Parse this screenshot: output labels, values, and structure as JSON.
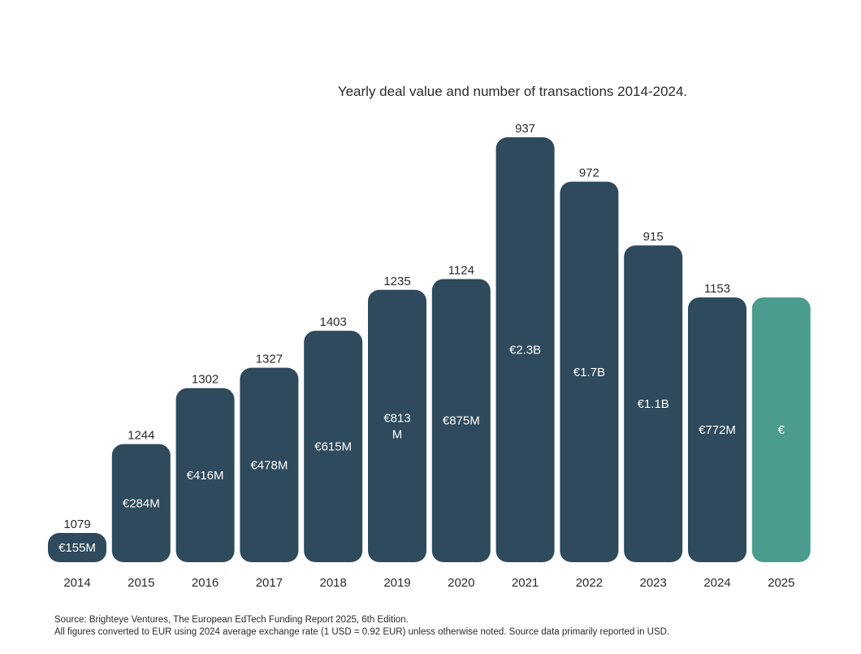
{
  "chart_data": {
    "type": "bar",
    "title": "Yearly deal value and number of transactions 2014-2024.",
    "xlabel": "",
    "ylabel": "",
    "categories": [
      "2014",
      "2015",
      "2016",
      "2017",
      "2018",
      "2019",
      "2020",
      "2021",
      "2022",
      "2023",
      "2024",
      "2025"
    ],
    "series": [
      {
        "name": "Deal value (EUR millions)",
        "values": [
          155,
          284,
          416,
          478,
          615,
          813,
          875,
          2300,
          1700,
          1100,
          772,
          772
        ],
        "labels": [
          "€155M",
          "€284M",
          "€416M",
          "€478M",
          "€615M",
          "€813\nM",
          "€875M",
          "€2.3B",
          "€1.7B",
          "€1.1B",
          "€772M",
          "€"
        ]
      },
      {
        "name": "Number of transactions",
        "values": [
          1079,
          1244,
          1302,
          1327,
          1403,
          1235,
          1124,
          937,
          972,
          915,
          1153,
          null
        ],
        "labels": [
          "1079",
          "1244",
          "1302",
          "1327",
          "1403",
          "1235",
          "1124",
          "937",
          "972",
          "915",
          "1153",
          ""
        ]
      }
    ],
    "ylim": [
      0,
      2300
    ],
    "grid": false,
    "legend": "none"
  },
  "colors": {
    "bar": "#2e4a5c",
    "highlight_bar": "#4a9d8e",
    "highlight_category": "2025"
  },
  "footer": {
    "source_line": "Source: Brighteye Ventures, The European EdTech Funding Report 2025, 6th Edition.",
    "note_line": "All figures converted to EUR using 2024 average exchange rate (1 USD = 0.92 EUR) unless otherwise noted. Source data primarily reported in USD."
  }
}
